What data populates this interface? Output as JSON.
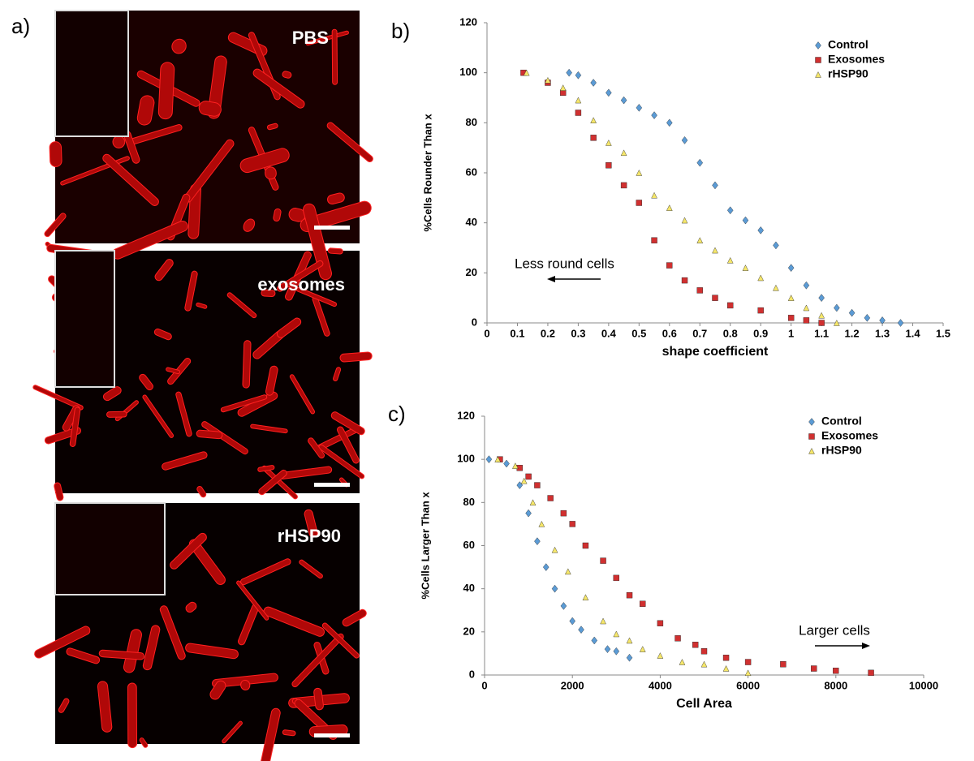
{
  "micrographs": {
    "panel_label": "a)",
    "labels": [
      "PBS",
      "exosomes",
      "rHSP90"
    ]
  },
  "chart_data": [
    {
      "type": "scatter",
      "panel_label": "b)",
      "y_label": "%Cells Rounder Than x",
      "x_label": "shape coefficient",
      "annotation": "Less round cells",
      "xlim": [
        0,
        1.5
      ],
      "xticks": [
        0,
        0.1,
        0.2,
        0.3,
        0.4,
        0.5,
        0.6,
        0.7,
        0.8,
        0.9,
        1,
        1.1,
        1.2,
        1.3,
        1.4,
        1.5
      ],
      "ylim": [
        0,
        120
      ],
      "yticks": [
        0,
        20,
        40,
        60,
        80,
        100,
        120
      ],
      "series": [
        {
          "name": "Control",
          "color": "#5b9bd5",
          "marker": "diamond",
          "x": [
            0.27,
            0.3,
            0.35,
            0.4,
            0.45,
            0.5,
            0.55,
            0.6,
            0.65,
            0.7,
            0.75,
            0.8,
            0.85,
            0.9,
            0.95,
            1.0,
            1.05,
            1.1,
            1.15,
            1.2,
            1.25,
            1.3,
            1.36
          ],
          "values": [
            100,
            99,
            96,
            92,
            89,
            86,
            83,
            80,
            73,
            64,
            55,
            45,
            41,
            37,
            31,
            22,
            15,
            10,
            6,
            4,
            2,
            1,
            0
          ]
        },
        {
          "name": "Exosomes",
          "color": "#d03030",
          "marker": "square",
          "x": [
            0.12,
            0.2,
            0.25,
            0.3,
            0.35,
            0.4,
            0.45,
            0.5,
            0.55,
            0.6,
            0.65,
            0.7,
            0.75,
            0.8,
            0.9,
            1.0,
            1.05,
            1.1
          ],
          "values": [
            100,
            96,
            92,
            84,
            74,
            63,
            55,
            48,
            33,
            23,
            17,
            13,
            10,
            7,
            5,
            2,
            1,
            0
          ]
        },
        {
          "name": "rHSP90",
          "color": "#f5e66a",
          "marker": "triangle",
          "x": [
            0.13,
            0.2,
            0.25,
            0.3,
            0.35,
            0.4,
            0.45,
            0.5,
            0.55,
            0.6,
            0.65,
            0.7,
            0.75,
            0.8,
            0.85,
            0.9,
            0.95,
            1.0,
            1.05,
            1.1,
            1.15
          ],
          "values": [
            100,
            97,
            94,
            89,
            81,
            72,
            68,
            60,
            51,
            46,
            41,
            33,
            29,
            25,
            22,
            18,
            14,
            10,
            6,
            3,
            0
          ]
        }
      ]
    },
    {
      "type": "scatter",
      "panel_label": "c)",
      "y_label": "%Cells Larger Than x",
      "x_label": "Cell Area",
      "annotation": "Larger cells",
      "xlim": [
        0,
        10000
      ],
      "xticks": [
        0,
        2000,
        4000,
        6000,
        8000,
        10000
      ],
      "ylim": [
        0,
        120
      ],
      "yticks": [
        0,
        20,
        40,
        60,
        80,
        100,
        120
      ],
      "series": [
        {
          "name": "Control",
          "color": "#5b9bd5",
          "marker": "diamond",
          "x": [
            100,
            500,
            800,
            1000,
            1200,
            1400,
            1600,
            1800,
            2000,
            2200,
            2500,
            2800,
            3000,
            3300
          ],
          "values": [
            100,
            98,
            88,
            75,
            62,
            50,
            40,
            32,
            25,
            21,
            16,
            12,
            11,
            8
          ]
        },
        {
          "name": "Exosomes",
          "color": "#d03030",
          "marker": "square",
          "x": [
            350,
            800,
            1000,
            1200,
            1500,
            1800,
            2000,
            2300,
            2700,
            3000,
            3300,
            3600,
            4000,
            4400,
            4800,
            5000,
            5500,
            6000,
            6800,
            7500,
            8000,
            8800
          ],
          "values": [
            100,
            96,
            92,
            88,
            82,
            75,
            70,
            60,
            53,
            45,
            37,
            33,
            24,
            17,
            14,
            11,
            8,
            6,
            5,
            3,
            2,
            1
          ]
        },
        {
          "name": "rHSP90",
          "color": "#f5e66a",
          "marker": "triangle",
          "x": [
            300,
            700,
            900,
            1100,
            1300,
            1600,
            1900,
            2300,
            2700,
            3000,
            3300,
            3600,
            4000,
            4500,
            5000,
            5500,
            6000
          ],
          "values": [
            100,
            97,
            90,
            80,
            70,
            58,
            48,
            36,
            25,
            19,
            16,
            12,
            9,
            6,
            5,
            3,
            1
          ]
        }
      ]
    }
  ]
}
